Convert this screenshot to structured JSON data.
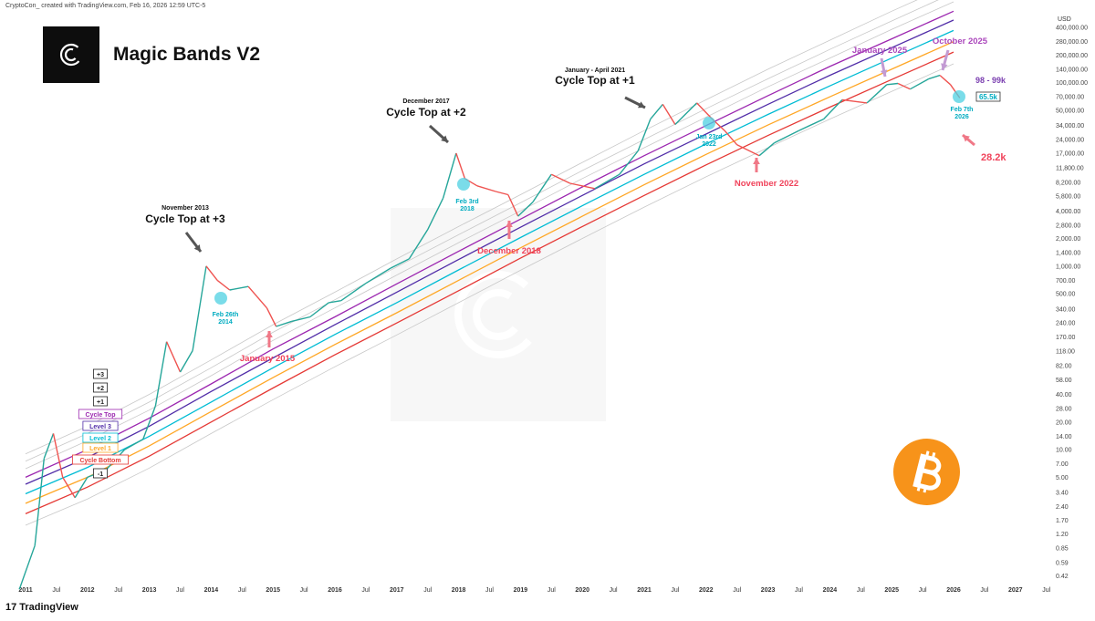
{
  "header": {
    "caption": "CryptoCon_ created with TradingView.com, Feb 16, 2026 12:59 UTC-5"
  },
  "title": "Magic Bands V2",
  "footer": {
    "brand": "TradingView",
    "brand_mark": "17"
  },
  "colors": {
    "up": "#26a69a",
    "down": "#ef5350",
    "cycle_top": "#9c27b0",
    "level3": "#512da8",
    "level2": "#00bcd4",
    "level1": "#ffa726",
    "cycle_bottom": "#e53935",
    "plus": "#c8c8c8",
    "annotation_red": "#f0435b",
    "annotation_purple": "#ab47bc",
    "annotation_cyan": "#00acc1",
    "btc_orange": "#f7931a"
  },
  "chart_data": {
    "type": "line",
    "title": "Magic Bands V2",
    "y_unit": "USD",
    "y_scale": "log",
    "y_ticks": [
      0.42,
      0.59,
      0.85,
      1.2,
      1.7,
      2.4,
      3.4,
      5.0,
      7.0,
      10.0,
      14.0,
      20.0,
      28.0,
      40.0,
      58.0,
      82.0,
      118.0,
      170.0,
      240.0,
      340.0,
      500.0,
      700.0,
      1000.0,
      1400.0,
      2000.0,
      2800.0,
      4000.0,
      5800.0,
      8200.0,
      11800.0,
      17000.0,
      24000.0,
      34000.0,
      50000.0,
      70000.0,
      100000.0,
      140000.0,
      200000.0,
      280000.0,
      400000.0
    ],
    "x_ticks": [
      {
        "label": "2011",
        "year": 2011.0
      },
      {
        "label": "Jul",
        "year": 2011.5
      },
      {
        "label": "2012",
        "year": 2012.0
      },
      {
        "label": "Jul",
        "year": 2012.5
      },
      {
        "label": "2013",
        "year": 2013.0
      },
      {
        "label": "Jul",
        "year": 2013.5
      },
      {
        "label": "2014",
        "year": 2014.0
      },
      {
        "label": "Jul",
        "year": 2014.5
      },
      {
        "label": "2015",
        "year": 2015.0
      },
      {
        "label": "Jul",
        "year": 2015.5
      },
      {
        "label": "2016",
        "year": 2016.0
      },
      {
        "label": "Jul",
        "year": 2016.5
      },
      {
        "label": "2017",
        "year": 2017.0
      },
      {
        "label": "Jul",
        "year": 2017.5
      },
      {
        "label": "2018",
        "year": 2018.0
      },
      {
        "label": "Jul",
        "year": 2018.5
      },
      {
        "label": "2019",
        "year": 2019.0
      },
      {
        "label": "Jul",
        "year": 2019.5
      },
      {
        "label": "2020",
        "year": 2020.0
      },
      {
        "label": "Jul",
        "year": 2020.5
      },
      {
        "label": "2021",
        "year": 2021.0
      },
      {
        "label": "Jul",
        "year": 2021.5
      },
      {
        "label": "2022",
        "year": 2022.0
      },
      {
        "label": "Jul",
        "year": 2022.5
      },
      {
        "label": "2023",
        "year": 2023.0
      },
      {
        "label": "Jul",
        "year": 2023.5
      },
      {
        "label": "2024",
        "year": 2024.0
      },
      {
        "label": "Jul",
        "year": 2024.5
      },
      {
        "label": "2025",
        "year": 2025.0
      },
      {
        "label": "Jul",
        "year": 2025.5
      },
      {
        "label": "2026",
        "year": 2026.0
      },
      {
        "label": "Jul",
        "year": 2026.5
      },
      {
        "label": "2027",
        "year": 2027.0
      },
      {
        "label": "Jul",
        "year": 2027.5
      }
    ],
    "price": {
      "x": [
        2010.9,
        2011.15,
        2011.3,
        2011.45,
        2011.6,
        2011.8,
        2012.0,
        2012.3,
        2012.6,
        2012.9,
        2013.1,
        2013.28,
        2013.5,
        2013.7,
        2013.92,
        2014.1,
        2014.3,
        2014.6,
        2014.9,
        2015.05,
        2015.3,
        2015.6,
        2015.9,
        2016.1,
        2016.5,
        2016.9,
        2017.2,
        2017.5,
        2017.75,
        2017.96,
        2018.1,
        2018.3,
        2018.6,
        2018.8,
        2018.96,
        2019.2,
        2019.5,
        2019.8,
        2020.2,
        2020.6,
        2020.9,
        2021.1,
        2021.3,
        2021.5,
        2021.85,
        2022.1,
        2022.3,
        2022.5,
        2022.86,
        2023.1,
        2023.5,
        2023.9,
        2024.2,
        2024.6,
        2024.92,
        2025.1,
        2025.3,
        2025.6,
        2025.78,
        2025.95,
        2026.1
      ],
      "y": [
        0.3,
        0.9,
        8,
        15,
        5,
        3,
        5,
        6,
        10,
        13,
        30,
        150,
        70,
        120,
        1000,
        700,
        550,
        600,
        350,
        220,
        250,
        280,
        400,
        420,
        650,
        950,
        1200,
        2500,
        5500,
        17000,
        9000,
        7500,
        6500,
        6000,
        3500,
        5000,
        10000,
        8000,
        7000,
        10000,
        18000,
        40000,
        58000,
        35000,
        60000,
        40000,
        30000,
        21000,
        16000,
        22000,
        30000,
        40000,
        65000,
        60000,
        95000,
        98000,
        85000,
        110000,
        120000,
        95000,
        68000
      ]
    },
    "bands": [
      {
        "name": "+3",
        "values": [
          9,
          18,
          40,
          95,
          230,
          520,
          1200,
          2700,
          6000,
          13500,
          30000,
          65000,
          140000,
          290000,
          600000,
          1200000
        ]
      },
      {
        "name": "+2",
        "values": [
          7.5,
          15,
          33,
          78,
          190,
          430,
          980,
          2200,
          4900,
          11000,
          24000,
          52000,
          110000,
          230000,
          470000,
          950000
        ]
      },
      {
        "name": "+1",
        "values": [
          6.2,
          12.5,
          27,
          64,
          155,
          350,
          800,
          1800,
          4000,
          9000,
          19500,
          42000,
          90000,
          185000,
          380000,
          760000
        ]
      },
      {
        "name": "Cycle Top",
        "values": [
          5,
          10,
          22,
          52,
          125,
          280,
          640,
          1450,
          3250,
          7300,
          16000,
          34000,
          72000,
          150000,
          300000,
          600000
        ]
      },
      {
        "name": "Level 3",
        "values": [
          4.2,
          8.2,
          18,
          43,
          100,
          230,
          520,
          1180,
          2650,
          5900,
          13000,
          27500,
          58000,
          120000,
          240000,
          480000
        ]
      },
      {
        "name": "Level 2",
        "values": [
          3.3,
          6.4,
          14,
          33,
          78,
          180,
          400,
          910,
          2050,
          4550,
          10000,
          21500,
          45000,
          92000,
          185000,
          370000
        ]
      },
      {
        "name": "Level 1",
        "values": [
          2.6,
          5,
          11,
          26,
          61,
          140,
          310,
          700,
          1580,
          3500,
          7700,
          16500,
          34500,
          70000,
          140000,
          280000
        ]
      },
      {
        "name": "Cycle Bottom",
        "values": [
          2,
          3.9,
          8.5,
          20,
          47,
          108,
          240,
          540,
          1220,
          2700,
          5900,
          12700,
          26500,
          54000,
          108000,
          215000
        ]
      },
      {
        "name": "-1",
        "values": [
          1.5,
          2.9,
          6.3,
          15,
          35,
          80,
          178,
          400,
          900,
          2000,
          4400,
          9400,
          19500,
          40000,
          80000,
          160000
        ]
      }
    ],
    "band_years": [
      2011.0,
      2012.0,
      2013.0,
      2014.0,
      2015.0,
      2016.0,
      2017.0,
      2018.0,
      2019.0,
      2020.0,
      2021.0,
      2022.0,
      2023.0,
      2024.0,
      2025.0,
      2026.0
    ],
    "band_legend": [
      "+3",
      "+2",
      "+1",
      "Cycle Top",
      "Level 3",
      "Level 2",
      "Level 1",
      "Cycle Bottom",
      "-1"
    ],
    "annotations": {
      "nov2013_small": "November 2013",
      "nov2013_big": "Cycle Top at +3",
      "dec2017_small": "December 2017",
      "dec2017_big": "Cycle Top at +2",
      "jan2021_small": "January - April 2021",
      "jan2021_big": "Cycle Top at +1",
      "feb2014_1": "Feb 26th",
      "feb2014_2": "2014",
      "feb2018_1": "Feb 3rd",
      "feb2018_2": "2018",
      "jan2022_1": "Jan 23rd",
      "jan2022_2": "2022",
      "feb2026_1": "Feb 7th",
      "feb2026_2": "2026",
      "jan2015": "January 2015",
      "dec2018": "December 2018",
      "nov2022": "November 2022",
      "jan2025": "January 2025",
      "oct2025": "October 2025",
      "range_top": "98 - 99k",
      "current_price": "65.5k",
      "bottom_target": "28.2k"
    }
  }
}
